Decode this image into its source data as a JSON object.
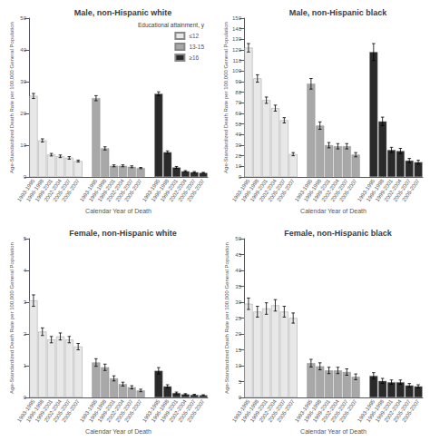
{
  "chart_data": [
    {
      "type": "bar",
      "title": "Male, non-Hispanic white",
      "xlabel": "Calendar Year of Death",
      "ylabel": "Age-Standardized Death Rate per 100,000 General Population",
      "categories": [
        "1993-1995",
        "1996-1998",
        "1999-2001",
        "2002-2004",
        "2005-2007",
        "2005-2007"
      ],
      "series": [
        {
          "name": "≤12",
          "color": "#e8e8e8",
          "values": [
            25.5,
            11.5,
            7.0,
            6.5,
            6.0,
            5.0
          ],
          "errors": [
            0.8,
            0.5,
            0.4,
            0.4,
            0.4,
            0.3
          ]
        },
        {
          "name": "13-15",
          "color": "#a8a8a8",
          "values": [
            24.8,
            9.0,
            3.5,
            3.5,
            3.2,
            2.8
          ],
          "errors": [
            0.8,
            0.5,
            0.3,
            0.3,
            0.3,
            0.2
          ]
        },
        {
          "name": "≥16",
          "color": "#2a2a2a",
          "values": [
            26.2,
            7.8,
            3.0,
            1.8,
            1.5,
            1.3
          ],
          "errors": [
            0.6,
            0.4,
            0.3,
            0.2,
            0.2,
            0.15
          ]
        }
      ],
      "ylim": [
        0,
        50
      ],
      "yticks": [
        0,
        10,
        20,
        30,
        40,
        50
      ],
      "grid": false,
      "legend": "upper right",
      "legend_title": "Educational attainment, y"
    },
    {
      "type": "bar",
      "title": "Male, non-Hispanic black",
      "xlabel": "Calendar Year of Death",
      "ylabel": "Age-Standardized Death Rate per 100,000 General Population",
      "categories": [
        "1993-1995",
        "1996-1998",
        "1999-2001",
        "2002-2004",
        "2005-2007",
        "2005-2007"
      ],
      "series": [
        {
          "name": "≤12",
          "color": "#e8e8e8",
          "values": [
            122.0,
            93.0,
            72.5,
            65.0,
            53.5,
            21.5
          ],
          "errors": [
            4.0,
            3.5,
            3.0,
            2.8,
            2.5,
            1.5
          ]
        },
        {
          "name": "13-15",
          "color": "#a8a8a8",
          "values": [
            88.0,
            48.5,
            30.0,
            29.0,
            29.0,
            21.0
          ],
          "errors": [
            5.0,
            3.5,
            2.5,
            2.5,
            2.5,
            2.0
          ]
        },
        {
          "name": "≥16",
          "color": "#2a2a2a",
          "values": [
            118.0,
            52.5,
            25.5,
            24.5,
            15.5,
            14.0
          ],
          "errors": [
            8.0,
            4.0,
            2.5,
            2.5,
            2.0,
            1.8
          ]
        }
      ],
      "ylim": [
        0,
        150
      ],
      "yticks": [
        0,
        10,
        20,
        30,
        40,
        50,
        60,
        70,
        80,
        90,
        100,
        110,
        120,
        130,
        140,
        150
      ],
      "grid": false
    },
    {
      "type": "bar",
      "title": "Female, non-Hispanic white",
      "xlabel": "Calendar Year of Death",
      "ylabel": "Age-Standardized Death Rate per 100,000 General Population",
      "categories": [
        "1993-1995",
        "1996-1998",
        "1999-2001",
        "2002-2004",
        "2005-2007",
        "2005-2007"
      ],
      "series": [
        {
          "name": "≤12",
          "color": "#e8e8e8",
          "values": [
            3.05,
            2.07,
            1.82,
            1.92,
            1.82,
            1.6
          ],
          "errors": [
            0.18,
            0.12,
            0.1,
            0.11,
            0.1,
            0.1
          ]
        },
        {
          "name": "13-15",
          "color": "#a8a8a8",
          "values": [
            1.1,
            0.95,
            0.6,
            0.42,
            0.32,
            0.22
          ],
          "errors": [
            0.12,
            0.1,
            0.08,
            0.06,
            0.05,
            0.04
          ]
        },
        {
          "name": "≥16",
          "color": "#2a2a2a",
          "values": [
            0.84,
            0.35,
            0.14,
            0.1,
            0.08,
            0.07
          ],
          "errors": [
            0.1,
            0.05,
            0.03,
            0.02,
            0.02,
            0.015
          ]
        }
      ],
      "ylim": [
        0,
        5
      ],
      "yticks": [
        0,
        1,
        2,
        3,
        4,
        5
      ],
      "grid": false
    },
    {
      "type": "bar",
      "title": "Female, non-Hispanic black",
      "xlabel": "Calendar Year of Death",
      "ylabel": "Age-Standardized Death Rate per 100,000 General Population",
      "categories": [
        "1993-1995",
        "1996-1998",
        "1999-2001",
        "2002-2004",
        "2005-2007",
        "2005-2007"
      ],
      "series": [
        {
          "name": "≤12",
          "color": "#e8e8e8",
          "values": [
            29.5,
            27.0,
            28.0,
            29.0,
            27.0,
            25.0
          ],
          "errors": [
            1.8,
            1.7,
            1.8,
            1.8,
            1.7,
            1.6
          ]
        },
        {
          "name": "13-15",
          "color": "#a8a8a8",
          "values": [
            10.8,
            9.8,
            8.5,
            8.5,
            8.0,
            6.5
          ],
          "errors": [
            1.2,
            1.1,
            1.0,
            1.0,
            1.0,
            0.9
          ]
        },
        {
          "name": "≥16",
          "color": "#2a2a2a",
          "values": [
            6.8,
            5.2,
            4.8,
            4.8,
            3.8,
            3.5
          ],
          "errors": [
            1.0,
            0.8,
            0.7,
            0.7,
            0.6,
            0.5
          ]
        }
      ],
      "ylim": [
        0,
        50
      ],
      "yticks": [
        0,
        5,
        10,
        15,
        20,
        25,
        30,
        35,
        40,
        45,
        50
      ],
      "grid": false
    }
  ]
}
